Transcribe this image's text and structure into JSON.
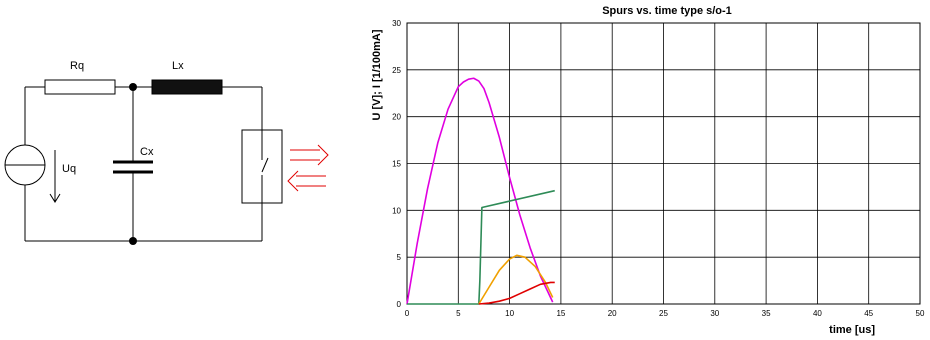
{
  "circuit": {
    "labels": {
      "resistor": "Rq",
      "inductor": "Lx",
      "capacitor": "Cx",
      "source": "Uq"
    }
  },
  "chart_data": {
    "type": "line",
    "title": "Spurs vs. time type s/o-1",
    "xlabel": "time [us]",
    "ylabel": "U [V]; I [1/100mA]",
    "xlim": [
      0,
      50
    ],
    "ylim": [
      0,
      30
    ],
    "xticks": [
      0,
      5,
      10,
      15,
      20,
      25,
      30,
      35,
      40,
      45,
      50
    ],
    "yticks": [
      0,
      5,
      10,
      15,
      20,
      25,
      30
    ],
    "grid": true,
    "series": [
      {
        "color": "#e000e0",
        "x": [
          0,
          1,
          2,
          3,
          4,
          5,
          5.5,
          6,
          6.5,
          7,
          7.5,
          8,
          9,
          10,
          11,
          12,
          13,
          14.2
        ],
        "y": [
          0,
          6.5,
          12.3,
          17.2,
          20.8,
          23.2,
          23.7,
          24,
          24.1,
          23.8,
          23.0,
          21.5,
          17.8,
          13.5,
          9.5,
          6.0,
          3.0,
          0.2
        ]
      },
      {
        "color": "#2e8b57",
        "x": [
          0,
          7,
          7.1,
          7.3,
          14.4
        ],
        "y": [
          0,
          0,
          2.5,
          10.3,
          12.1
        ]
      },
      {
        "color": "#f0a000",
        "x": [
          7,
          8,
          9,
          10,
          10.7,
          11.5,
          12.5,
          13.5,
          14.2
        ],
        "y": [
          0,
          1.8,
          3.6,
          4.8,
          5.2,
          5.0,
          4.0,
          2.3,
          0.7
        ]
      },
      {
        "color": "#e00000",
        "x": [
          7,
          8,
          9,
          10,
          11,
          12,
          13,
          14,
          14.4
        ],
        "y": [
          0,
          0.1,
          0.3,
          0.6,
          1.1,
          1.6,
          2.1,
          2.3,
          2.3
        ]
      }
    ]
  }
}
